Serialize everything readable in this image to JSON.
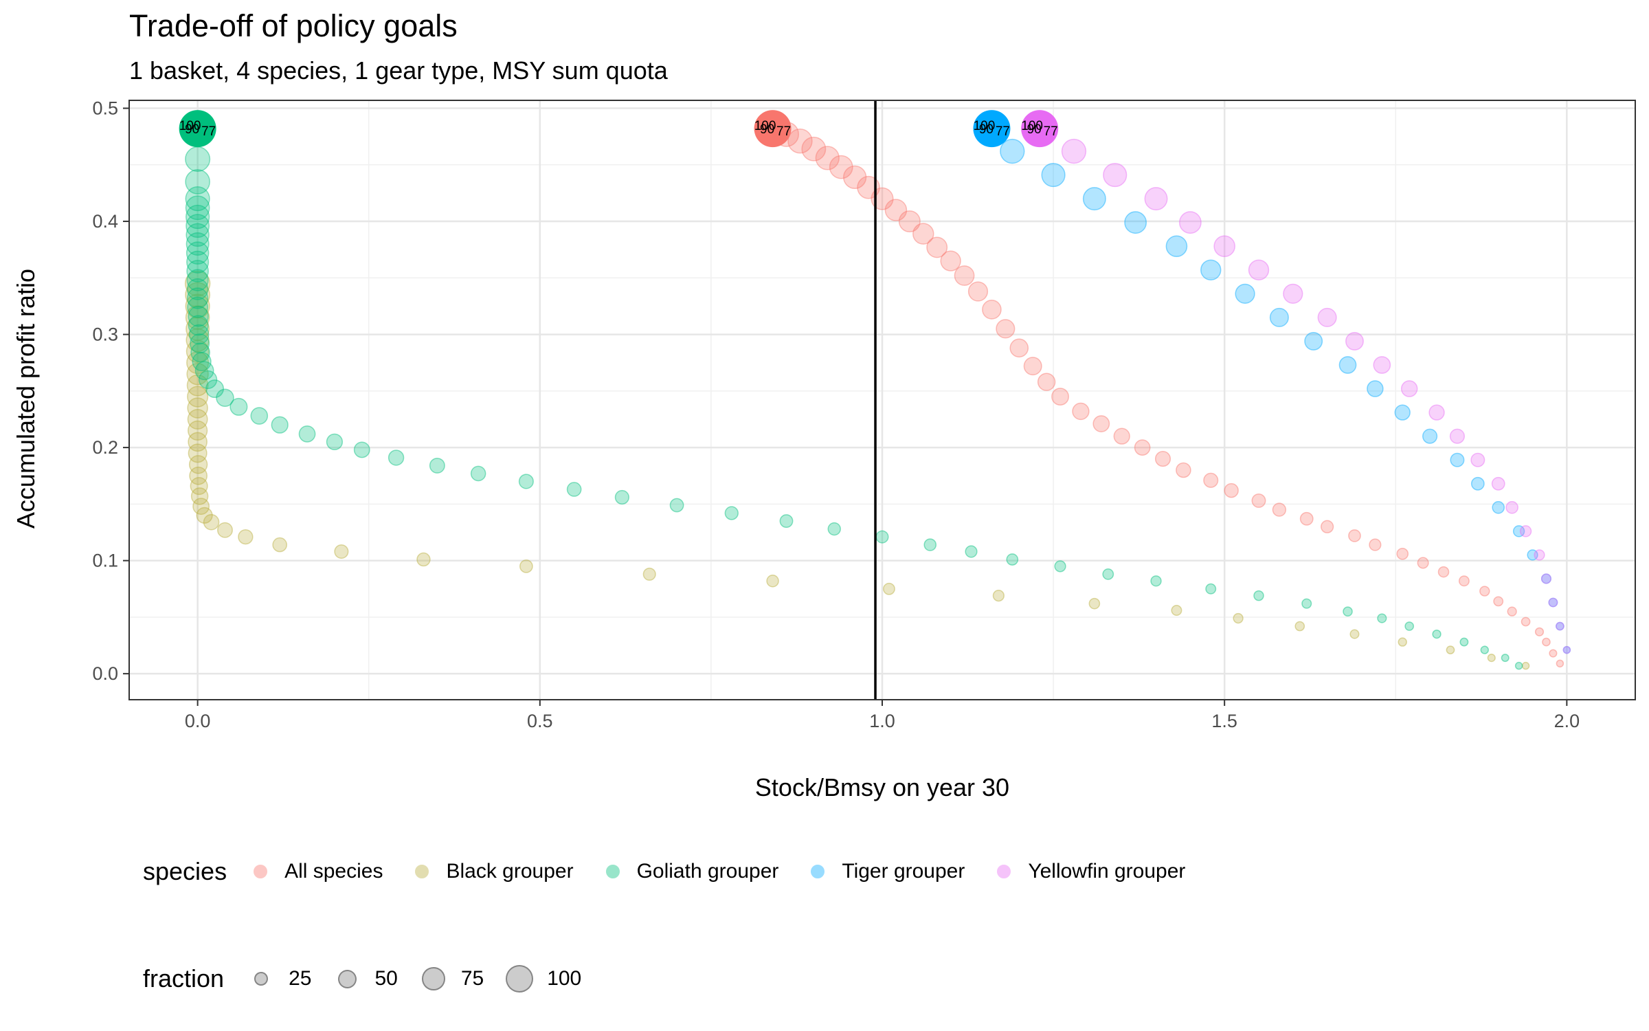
{
  "chart_data": {
    "type": "scatter",
    "title": "Trade-off of policy goals",
    "subtitle": "1 basket, 4 species, 1 gear type, MSY sum quota",
    "xlabel": "Stock/Bmsy on year 30",
    "ylabel": "Accumulated profit ratio",
    "xlim": [
      -0.1,
      2.1
    ],
    "ylim": [
      -0.023,
      0.507
    ],
    "x_ticks": [
      "0.0",
      "0.5",
      "1.0",
      "1.5",
      "2.0"
    ],
    "x_tick_values": [
      0,
      0.5,
      1,
      1.5,
      2
    ],
    "y_ticks": [
      "0.0",
      "0.1",
      "0.2",
      "0.3",
      "0.4",
      "0.5"
    ],
    "y_tick_values": [
      0,
      0.1,
      0.2,
      0.3,
      0.4,
      0.5
    ],
    "grid": true,
    "reference_line": {
      "x": 0.99
    },
    "size_variable": "fraction",
    "legend": {
      "species_title": "species",
      "fraction_title": "fraction",
      "fraction_values": [
        25,
        50,
        75,
        100
      ],
      "placement": "bottom"
    },
    "series": [
      {
        "name": "All species",
        "color": "#F8766D",
        "x": [
          1.99,
          1.98,
          1.97,
          1.96,
          1.94,
          1.92,
          1.9,
          1.88,
          1.85,
          1.82,
          1.79,
          1.76,
          1.72,
          1.69,
          1.65,
          1.62,
          1.58,
          1.55,
          1.51,
          1.48,
          1.44,
          1.41,
          1.38,
          1.35,
          1.32,
          1.29,
          1.26,
          1.24,
          1.22,
          1.2,
          1.18,
          1.16,
          1.14,
          1.12,
          1.1,
          1.08,
          1.06,
          1.04,
          1.02,
          1.0,
          0.98,
          0.96,
          0.94,
          0.92,
          0.9,
          0.88,
          0.86,
          0.84
        ],
        "y": [
          0.009,
          0.018,
          0.028,
          0.037,
          0.046,
          0.055,
          0.064,
          0.073,
          0.082,
          0.09,
          0.098,
          0.106,
          0.114,
          0.122,
          0.13,
          0.137,
          0.145,
          0.153,
          0.162,
          0.171,
          0.18,
          0.19,
          0.2,
          0.21,
          0.221,
          0.232,
          0.245,
          0.258,
          0.272,
          0.288,
          0.305,
          0.322,
          0.338,
          0.352,
          0.365,
          0.377,
          0.389,
          0.4,
          0.41,
          0.42,
          0.43,
          0.439,
          0.448,
          0.456,
          0.464,
          0.471,
          0.477,
          0.482
        ]
      },
      {
        "name": "Black grouper",
        "color": "#B8AC3B",
        "x": [
          1.94,
          1.89,
          1.83,
          1.76,
          1.69,
          1.61,
          1.52,
          1.43,
          1.31,
          1.17,
          1.01,
          0.84,
          0.66,
          0.48,
          0.33,
          0.21,
          0.12,
          0.07,
          0.04,
          0.02,
          0.01,
          0.005,
          0.003,
          0.002,
          0.001,
          0.001,
          0.0,
          0.0,
          0.0,
          0.0,
          0.0,
          0.0,
          0.0,
          0.0,
          0.0,
          0.0,
          0.0,
          0.0,
          0.0,
          0.0,
          0.0,
          0.0
        ],
        "y": [
          0.007,
          0.014,
          0.021,
          0.028,
          0.035,
          0.042,
          0.049,
          0.056,
          0.062,
          0.069,
          0.075,
          0.082,
          0.088,
          0.095,
          0.101,
          0.108,
          0.114,
          0.121,
          0.127,
          0.134,
          0.14,
          0.148,
          0.157,
          0.166,
          0.175,
          0.185,
          0.195,
          0.205,
          0.215,
          0.225,
          0.235,
          0.245,
          0.255,
          0.265,
          0.275,
          0.285,
          0.295,
          0.305,
          0.315,
          0.325,
          0.335,
          0.345
        ]
      },
      {
        "name": "Goliath grouper",
        "color": "#00BF7D",
        "x": [
          1.93,
          1.91,
          1.88,
          1.85,
          1.81,
          1.77,
          1.73,
          1.68,
          1.62,
          1.55,
          1.48,
          1.4,
          1.33,
          1.26,
          1.19,
          1.13,
          1.07,
          1.0,
          0.93,
          0.86,
          0.78,
          0.7,
          0.62,
          0.55,
          0.48,
          0.41,
          0.35,
          0.29,
          0.24,
          0.2,
          0.16,
          0.12,
          0.09,
          0.06,
          0.04,
          0.025,
          0.015,
          0.01,
          0.006,
          0.004,
          0.003,
          0.002,
          0.001,
          0.001,
          0.0,
          0.0,
          0.0,
          0.0,
          0.0,
          0.0,
          0.0,
          0.0,
          0.0,
          0.0,
          0.0,
          0.0,
          0.0,
          0.0,
          0.0,
          0.0
        ],
        "y": [
          0.007,
          0.014,
          0.021,
          0.028,
          0.035,
          0.042,
          0.049,
          0.055,
          0.062,
          0.069,
          0.075,
          0.082,
          0.088,
          0.095,
          0.101,
          0.108,
          0.114,
          0.121,
          0.128,
          0.135,
          0.142,
          0.149,
          0.156,
          0.163,
          0.17,
          0.177,
          0.184,
          0.191,
          0.198,
          0.205,
          0.212,
          0.22,
          0.228,
          0.236,
          0.244,
          0.252,
          0.26,
          0.268,
          0.276,
          0.284,
          0.292,
          0.3,
          0.308,
          0.316,
          0.324,
          0.332,
          0.34,
          0.348,
          0.356,
          0.364,
          0.372,
          0.38,
          0.388,
          0.396,
          0.404,
          0.412,
          0.42,
          0.435,
          0.455,
          0.482
        ]
      },
      {
        "name": "Tiger grouper",
        "color": "#00A9FF",
        "x": [
          2.0,
          1.99,
          1.98,
          1.97,
          1.95,
          1.93,
          1.9,
          1.87,
          1.84,
          1.8,
          1.76,
          1.72,
          1.68,
          1.63,
          1.58,
          1.53,
          1.48,
          1.43,
          1.37,
          1.31,
          1.25,
          1.19,
          1.16
        ],
        "y": [
          0.021,
          0.042,
          0.063,
          0.084,
          0.105,
          0.126,
          0.147,
          0.168,
          0.189,
          0.21,
          0.231,
          0.252,
          0.273,
          0.294,
          0.315,
          0.336,
          0.357,
          0.378,
          0.399,
          0.42,
          0.441,
          0.462,
          0.482
        ]
      },
      {
        "name": "Yellowfin grouper",
        "color": "#E76BF3",
        "x": [
          2.0,
          1.99,
          1.98,
          1.97,
          1.96,
          1.94,
          1.92,
          1.9,
          1.87,
          1.84,
          1.81,
          1.77,
          1.73,
          1.69,
          1.65,
          1.6,
          1.55,
          1.5,
          1.45,
          1.4,
          1.34,
          1.28,
          1.23
        ],
        "y": [
          0.021,
          0.042,
          0.063,
          0.084,
          0.105,
          0.126,
          0.147,
          0.168,
          0.189,
          0.21,
          0.231,
          0.252,
          0.273,
          0.294,
          0.315,
          0.336,
          0.357,
          0.378,
          0.399,
          0.42,
          0.441,
          0.462,
          0.482
        ]
      }
    ],
    "highlighted_points": [
      {
        "series": "Goliath grouper",
        "x": 0.0,
        "y": 0.482,
        "labels": [
          "77",
          "90",
          "100"
        ]
      },
      {
        "series": "All species",
        "x": 0.84,
        "y": 0.482,
        "labels": [
          "77",
          "90",
          "100"
        ]
      },
      {
        "series": "Tiger grouper",
        "x": 1.16,
        "y": 0.482,
        "labels": [
          "77",
          "90",
          "100"
        ]
      },
      {
        "series": "Yellowfin grouper",
        "x": 1.23,
        "y": 0.482,
        "labels": [
          "77",
          "90",
          "100"
        ]
      }
    ]
  }
}
